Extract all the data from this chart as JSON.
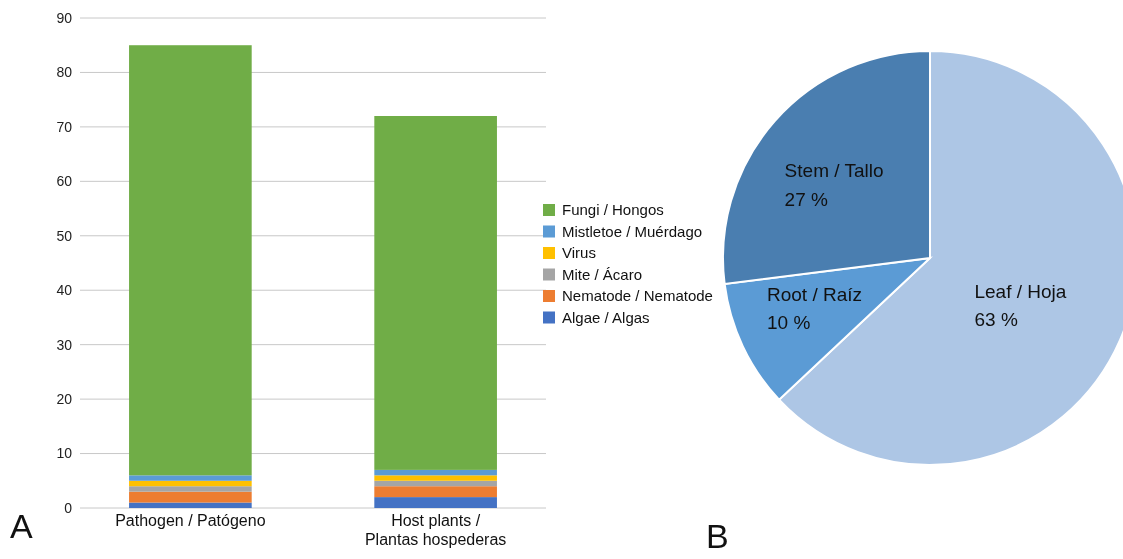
{
  "chart_data": [
    {
      "type": "bar",
      "stacked": true,
      "categories": [
        "Pathogen / Patógeno",
        "Host plants / Plantas hospederas"
      ],
      "series": [
        {
          "name": "Algae / Algas",
          "color": "#4472c4",
          "values": [
            1,
            2
          ]
        },
        {
          "name": "Nematode / Nematode",
          "color": "#ed7d31",
          "values": [
            2,
            2
          ]
        },
        {
          "name": "Mite / Ácaro",
          "color": "#a5a5a5",
          "values": [
            1,
            1
          ]
        },
        {
          "name": "Virus",
          "color": "#ffc000",
          "values": [
            1,
            1
          ]
        },
        {
          "name": "Mistletoe / Muérdago",
          "color": "#5b9bd5",
          "values": [
            1,
            1
          ]
        },
        {
          "name": "Fungi / Hongos",
          "color": "#70ad47",
          "values": [
            79,
            65
          ]
        }
      ],
      "ylim": [
        0,
        90
      ],
      "yticks": [
        0,
        10,
        20,
        30,
        40,
        50,
        60,
        70,
        80,
        90
      ],
      "grid": "y",
      "legend": "right",
      "annotations": [
        "A"
      ]
    },
    {
      "type": "pie",
      "categories": [
        "Leaf / Hoja",
        "Root / Raíz",
        "Stem / Tallo"
      ],
      "values": [
        63,
        10,
        27
      ],
      "colors": [
        "#adc6e5",
        "#5b9bd5",
        "#4a7eb0"
      ],
      "value_labels": [
        "63 %",
        "10 %",
        "27 %"
      ],
      "annotations": [
        "B"
      ]
    }
  ]
}
